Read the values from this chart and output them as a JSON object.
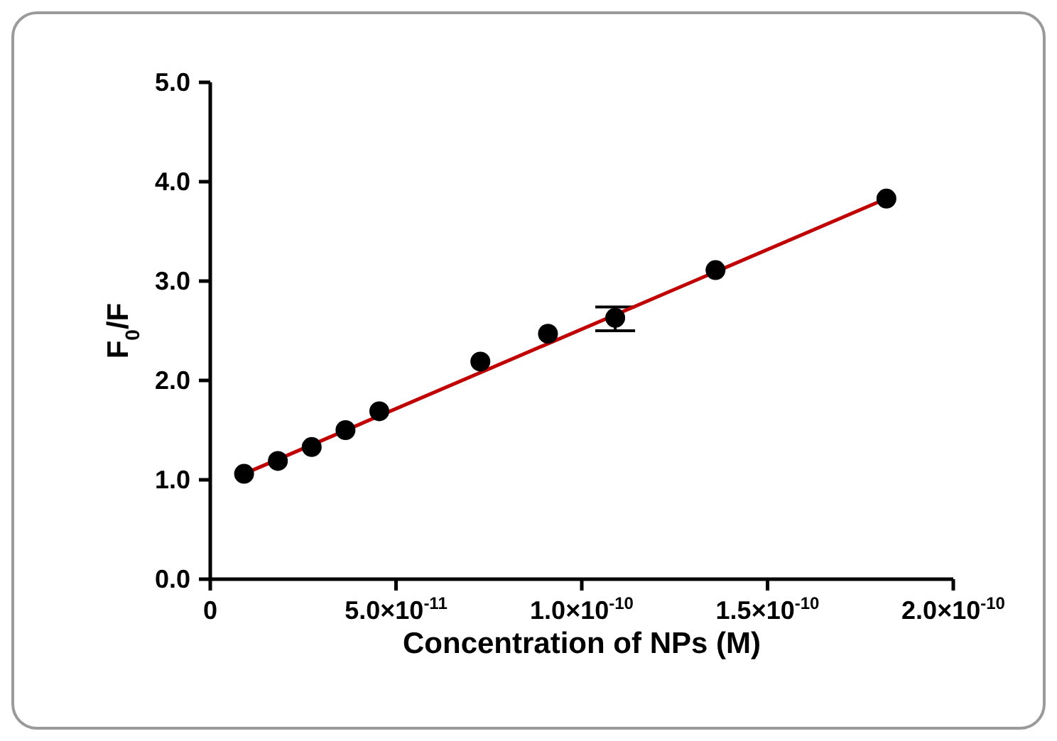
{
  "chart_data": {
    "type": "scatter",
    "xlabel": "Concentration of NPs (M)",
    "ylabel": "F$_{0}$/F",
    "x": [
      9.1e-12,
      1.82e-11,
      2.73e-11,
      3.64e-11,
      4.55e-11,
      7.27e-11,
      9.09e-11,
      1.09e-10,
      1.36e-10,
      1.82e-10
    ],
    "series": [
      {
        "color": "#000000",
        "marker": "circle",
        "values": [
          1.06,
          1.19,
          1.33,
          1.5,
          1.69,
          2.19,
          2.47,
          2.63,
          3.11,
          3.83
        ],
        "errors": [
          null,
          null,
          null,
          null,
          null,
          null,
          null,
          [
            2.5,
            2.74
          ],
          null,
          null
        ]
      },
      {
        "type": "line",
        "color": "#c00000",
        "x": [
          9.1e-12,
          1.82e-10
        ],
        "values": [
          1.06,
          3.83
        ]
      }
    ],
    "xlim": [
      0,
      2e-10
    ],
    "xticks": [
      0,
      {
        "value": 5e-11,
        "label": "5.0×10$^{-11}$"
      },
      {
        "value": 1e-10,
        "label": "1.0×10$^{-10}$"
      },
      {
        "value": 1.5e-10,
        "label": "1.5×10$^{-10}$"
      },
      {
        "value": 2e-10,
        "label": "2.0×10$^{-10}$"
      }
    ],
    "ylim": [
      0,
      5
    ],
    "yticks": [
      {
        "value": 0,
        "label": "0.0"
      },
      {
        "value": 1,
        "label": "1.0"
      },
      {
        "value": 2,
        "label": "2.0"
      },
      {
        "value": 3,
        "label": "3.0"
      },
      {
        "value": 4,
        "label": "4.0"
      },
      {
        "value": 5,
        "label": "5.0"
      }
    ],
    "grid": false
  }
}
